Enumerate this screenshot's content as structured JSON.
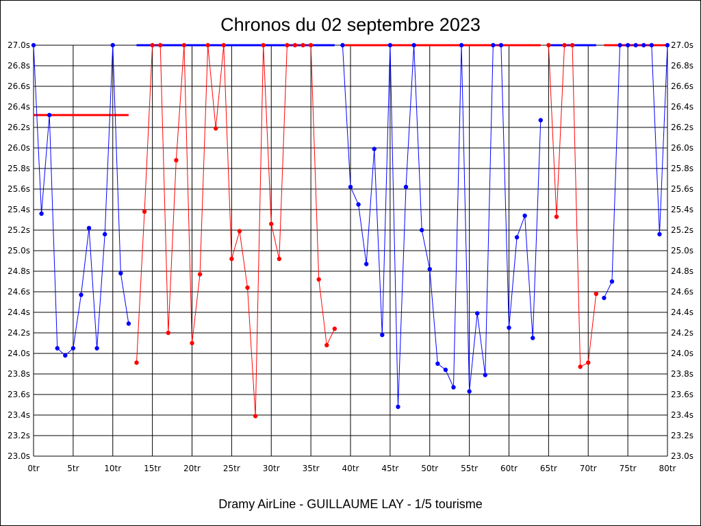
{
  "title": "Chronos du 02 septembre 2023",
  "footer": "Dramy AirLine - GUILLAUME LAY - 1/5 tourisme",
  "colors": {
    "blue": "#0000ff",
    "red": "#ff0000",
    "grid": "#000000",
    "background": "#ffffff"
  },
  "chart_data": {
    "type": "line",
    "title": "Chronos du 02 septembre 2023",
    "xlim": [
      0,
      80
    ],
    "ylim": [
      23.0,
      27.0
    ],
    "x_ticks": [
      0,
      5,
      10,
      15,
      20,
      25,
      30,
      35,
      40,
      45,
      50,
      55,
      60,
      65,
      70,
      75,
      80
    ],
    "x_tick_labels": [
      "0tr",
      "5tr",
      "10tr",
      "15tr",
      "20tr",
      "25tr",
      "30tr",
      "35tr",
      "40tr",
      "45tr",
      "50tr",
      "55tr",
      "60tr",
      "65tr",
      "70tr",
      "75tr",
      "80tr"
    ],
    "y_ticks": [
      23.0,
      23.2,
      23.4,
      23.6,
      23.8,
      24.0,
      24.2,
      24.4,
      24.6,
      24.8,
      25.0,
      25.2,
      25.4,
      25.6,
      25.8,
      26.0,
      26.2,
      26.4,
      26.6,
      26.8,
      27.0
    ],
    "y_tick_labels": [
      "23.0s",
      "23.2s",
      "23.4s",
      "23.6s",
      "23.8s",
      "24.0s",
      "24.2s",
      "24.4s",
      "24.6s",
      "24.8s",
      "25.0s",
      "25.2s",
      "25.4s",
      "25.6s",
      "25.8s",
      "26.0s",
      "26.2s",
      "26.4s",
      "26.6s",
      "26.8s",
      "27.0s"
    ],
    "grid": true,
    "series": [
      {
        "color": "blue",
        "x": [
          0,
          1,
          2,
          3,
          4,
          5,
          6,
          7,
          8,
          9,
          10,
          11,
          12
        ],
        "y": [
          27.0,
          25.36,
          26.32,
          24.05,
          23.98,
          24.05,
          24.57,
          25.22,
          24.05,
          25.16,
          27.0,
          24.78,
          24.29
        ]
      },
      {
        "color": "red",
        "x": [
          13,
          14,
          15,
          16,
          17,
          18,
          19,
          20,
          21,
          22,
          23,
          24,
          25,
          26,
          27,
          28,
          29,
          30,
          31,
          32,
          33,
          34,
          35,
          36,
          37,
          38
        ],
        "y": [
          23.91,
          25.38,
          27.0,
          27.0,
          24.2,
          25.88,
          27.0,
          24.1,
          24.77,
          27.0,
          26.19,
          27.0,
          24.92,
          25.19,
          24.64,
          23.39,
          27.0,
          25.26,
          24.92,
          27.0,
          27.0,
          27.0,
          27.0,
          24.72,
          24.08,
          24.24
        ]
      },
      {
        "color": "blue",
        "x": [
          39,
          40,
          41,
          42,
          43,
          44,
          45,
          46,
          47,
          48,
          49,
          50,
          51,
          52,
          53,
          54,
          55,
          56,
          57,
          58,
          59,
          60,
          61,
          62,
          63,
          64
        ],
        "y": [
          27.0,
          25.62,
          25.45,
          24.87,
          25.99,
          24.18,
          27.0,
          23.48,
          25.62,
          27.0,
          25.2,
          24.82,
          23.9,
          23.84,
          23.67,
          27.0,
          23.63,
          24.39,
          23.79,
          27.0,
          27.0,
          24.25,
          25.13,
          25.34,
          24.15,
          26.27
        ]
      },
      {
        "color": "red",
        "x": [
          65,
          66,
          67,
          68,
          69,
          70,
          71
        ],
        "y": [
          27.0,
          25.33,
          27.0,
          27.0,
          23.87,
          23.91,
          24.58
        ]
      },
      {
        "color": "blue",
        "x": [
          72,
          73,
          74,
          75,
          76,
          77,
          78,
          79,
          80
        ],
        "y": [
          24.54,
          24.7,
          27.0,
          27.0,
          27.0,
          27.0,
          27.0,
          25.16,
          27.0
        ]
      }
    ],
    "overflow_runs": [
      {
        "color": "red",
        "x_start": 0,
        "x_end": 12,
        "y": 26.32
      },
      {
        "color": "blue",
        "x_start": 13,
        "x_end": 38,
        "y": 27.0
      },
      {
        "color": "red",
        "x_start": 39,
        "x_end": 64,
        "y": 27.0
      },
      {
        "color": "blue",
        "x_start": 65,
        "x_end": 71,
        "y": 27.0
      },
      {
        "color": "red",
        "x_start": 72,
        "x_end": 80,
        "y": 27.0
      }
    ]
  }
}
